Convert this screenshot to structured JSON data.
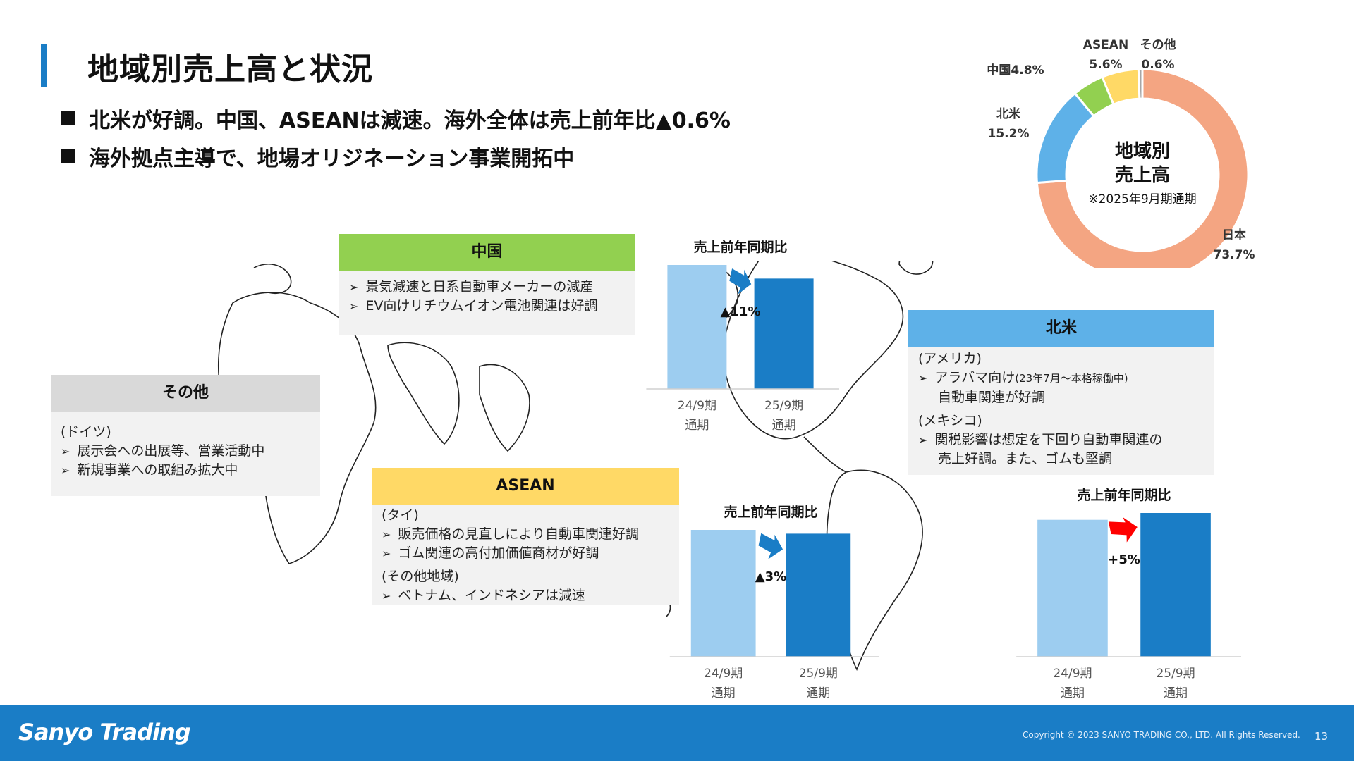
{
  "header": {
    "title": "地域別売上高と状況",
    "bullets": [
      "北米が好調。中国、ASEANは減速。海外全体は売上前年比▲0.6%",
      "海外拠点主導で、地場オリジネーション事業開拓中"
    ]
  },
  "regions": {
    "china": {
      "title": "中国",
      "color": "#92d050",
      "items": [
        "景気減速と日系自動車メーカーの減産",
        "EV向けリチウムイオン電池関連は好調"
      ]
    },
    "other": {
      "title": "その他",
      "color": "#d9d9d9",
      "group": "(ドイツ)",
      "items": [
        "展示会への出展等、営業活動中",
        "新規事業への取組み拡大中"
      ]
    },
    "asean": {
      "title": "ASEAN",
      "color": "#ffd966",
      "group1": "(タイ)",
      "items1": [
        "販売価格の見直しにより自動車関連好調",
        "ゴム関連の高付加価値商材が好調"
      ],
      "group2": "(その他地域)",
      "items2": [
        "ベトナム、インドネシアは減速"
      ]
    },
    "north_america": {
      "title": "北米",
      "color": "#5eb1e8",
      "group1": "(アメリカ)",
      "item1_main": "アラバマ向け",
      "item1_note": "(23年7月～本格稼働中)",
      "item1_cont": "自動車関連が好調",
      "group2": "(メキシコ)",
      "item2_line1": "関税影響は想定を下回り自動車関連の",
      "item2_line2": "売上好調。また、ゴムも堅調"
    }
  },
  "chart_data": [
    {
      "id": "china",
      "type": "bar",
      "title": "売上前年同期比",
      "categories": [
        "24/9期 通期",
        "25/9期 通期"
      ],
      "category_lines": [
        [
          "24/9期",
          "通期"
        ],
        [
          "25/9期",
          "通期"
        ]
      ],
      "values": [
        100,
        89
      ],
      "change_label": "▲11%",
      "arrow_color": "#1a7dc6",
      "colors": [
        "#9dcdf0",
        "#1a7dc6"
      ]
    },
    {
      "id": "asean",
      "type": "bar",
      "title": "売上前年同期比",
      "categories": [
        "24/9期 通期",
        "25/9期 通期"
      ],
      "category_lines": [
        [
          "24/9期",
          "通期"
        ],
        [
          "25/9期",
          "通期"
        ]
      ],
      "values": [
        100,
        97
      ],
      "change_label": "▲3%",
      "arrow_color": "#1a7dc6",
      "colors": [
        "#9dcdf0",
        "#1a7dc6"
      ]
    },
    {
      "id": "north_america",
      "type": "bar",
      "title": "売上前年同期比",
      "categories": [
        "24/9期 通期",
        "25/9期 通期"
      ],
      "category_lines": [
        [
          "24/9期",
          "通期"
        ],
        [
          "25/9期",
          "通期"
        ]
      ],
      "values": [
        100,
        105
      ],
      "change_label": "+5%",
      "arrow_color": "#ff0000",
      "colors": [
        "#9dcdf0",
        "#1a7dc6"
      ]
    },
    {
      "id": "regional_sales",
      "type": "pie",
      "center_title": [
        "地域別",
        "売上高"
      ],
      "center_note": "※2025年9月期通期",
      "slices": [
        {
          "label": "日本",
          "value": 73.7,
          "display": "73.7%",
          "color": "#f4a582"
        },
        {
          "label": "北米",
          "value": 15.2,
          "display": "15.2%",
          "color": "#5eb1e8"
        },
        {
          "label": "中国",
          "value": 4.8,
          "display": "4.8%",
          "color": "#92d050"
        },
        {
          "label": "ASEAN",
          "value": 5.6,
          "display": "5.6%",
          "color": "#ffd966"
        },
        {
          "label": "その他",
          "value": 0.6,
          "display": "0.6%",
          "color": "#a6a6a6"
        }
      ]
    }
  ],
  "footer": {
    "logo": "Sanyo Trading",
    "copyright": "Copyright © 2023 SANYO TRADING CO., LTD. All Rights Reserved.",
    "page": "13"
  }
}
